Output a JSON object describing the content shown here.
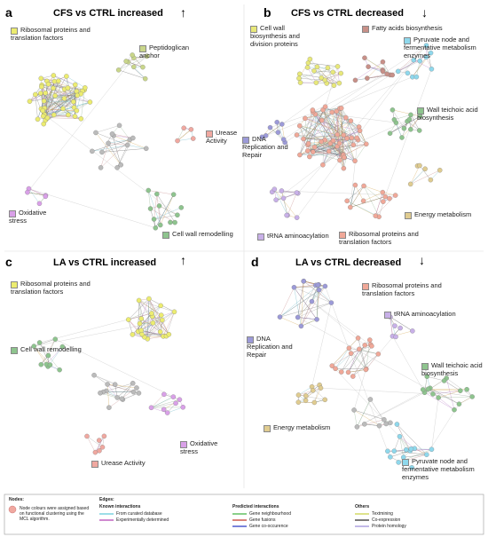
{
  "panels": [
    {
      "letter": "a",
      "title": "CFS vs CTRL increased",
      "arrow": "↑",
      "clusters": [
        {
          "label": "Ribosomal proteins and translation factors",
          "color": "#ecec70"
        },
        {
          "label": "Peptidoglican anchor",
          "color": "#c9d68a"
        },
        {
          "label": "Urease Activity",
          "color": "#f0a8a0"
        },
        {
          "label": "Oxidative stress",
          "color": "#d9a0e8"
        },
        {
          "label": "Cell wall remodelling",
          "color": "#8ec48e"
        }
      ]
    },
    {
      "letter": "b",
      "title": "CFS vs CTRL decreased",
      "arrow": "↓",
      "clusters": [
        {
          "label": "Cell wall biosynthesis and division proteins",
          "color": "#e8e87a"
        },
        {
          "label": "Fatty acids biosynthesis",
          "color": "#c89088"
        },
        {
          "label": "Pyruvate node and fermentative metabolism enzymes",
          "color": "#8fd8ec"
        },
        {
          "label": "Wall teichoic acid biosynthesis",
          "color": "#8ec48e"
        },
        {
          "label": "DNA Replication and Repair",
          "color": "#9c9ad8"
        },
        {
          "label": "Energy metabolism",
          "color": "#e0cc90"
        },
        {
          "label": "tRNA aminoacylation",
          "color": "#c8b0e8"
        },
        {
          "label": "Ribosomal proteins and translation factors",
          "color": "#f0a898"
        }
      ]
    },
    {
      "letter": "c",
      "title": "LA vs CTRL increased",
      "arrow": "↑",
      "clusters": [
        {
          "label": "Ribosomal proteins and translation factors",
          "color": "#ecec70"
        },
        {
          "label": "Cell wall remodelling",
          "color": "#8ec48e"
        },
        {
          "label": "Oxidative stress",
          "color": "#d9a0e8"
        },
        {
          "label": "Urease Activity",
          "color": "#f0a8a0"
        }
      ]
    },
    {
      "letter": "d",
      "title": "LA vs CTRL decreased",
      "arrow": "↓",
      "clusters": [
        {
          "label": "Ribosomal proteins and translation factors",
          "color": "#f0a898"
        },
        {
          "label": "tRNA aminoacylation",
          "color": "#c8b0e8"
        },
        {
          "label": "DNA Replication and Repair",
          "color": "#9c9ad8"
        },
        {
          "label": "Wall teichoic acid biosynthesis",
          "color": "#8ec48e"
        },
        {
          "label": "Energy metabolism",
          "color": "#e0cc90"
        },
        {
          "label": "Pyruvate node and fermentative metabolism enzymes",
          "color": "#8fd8ec"
        }
      ]
    }
  ],
  "legend": {
    "nodes_title": "Nodes:",
    "nodes_text": "Node colours were assigned based on functional clustering using the MCL algorithm.",
    "edges_title": "Edges:",
    "groups": [
      {
        "title": "Known interactions",
        "items": [
          {
            "label": "From curated database",
            "color": "#5bc8d8"
          },
          {
            "label": "Experimentally determined",
            "color": "#b03cb0"
          }
        ]
      },
      {
        "title": "Predicted interactions",
        "items": [
          {
            "label": "Gene neighbourhood",
            "color": "#3cb03c"
          },
          {
            "label": "Gene fusions",
            "color": "#c03020"
          },
          {
            "label": "Gene co-occurence",
            "color": "#2030c0"
          }
        ]
      },
      {
        "title": "Others",
        "items": [
          {
            "label": "Textmining",
            "color": "#c8d040"
          },
          {
            "label": "Co-expression",
            "color": "#222222"
          },
          {
            "label": "Protein homology",
            "color": "#9a8ad8"
          }
        ]
      }
    ]
  }
}
